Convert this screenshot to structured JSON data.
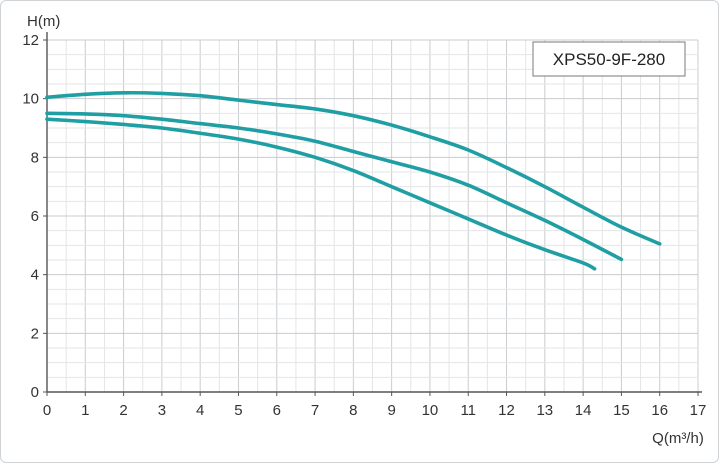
{
  "chart_data": {
    "type": "line",
    "title": "",
    "xlabel": "Q(m³/h)",
    "ylabel": "H(m)",
    "annotation": "XPS50-9F-280",
    "xlim": [
      0,
      17
    ],
    "ylim": [
      0,
      12
    ],
    "x_ticks": [
      "0",
      "1",
      "2",
      "3",
      "4",
      "5",
      "6",
      "7",
      "8",
      "9",
      "10",
      "11",
      "12",
      "13",
      "14",
      "15",
      "16",
      "17"
    ],
    "y_ticks": [
      "0",
      "2",
      "4",
      "6",
      "8",
      "10",
      "12"
    ],
    "grid": true,
    "line_color": "#1f9fa3",
    "series": [
      {
        "x": [
          0,
          1,
          2,
          3,
          4,
          5,
          6,
          7,
          8,
          9,
          10,
          11,
          12,
          13,
          14,
          15,
          16
        ],
        "y": [
          10.05,
          10.15,
          10.2,
          10.18,
          10.1,
          9.95,
          9.8,
          9.65,
          9.42,
          9.1,
          8.7,
          8.25,
          7.65,
          7.0,
          6.3,
          5.62,
          5.05
        ]
      },
      {
        "x": [
          0,
          1,
          2,
          3,
          4,
          5,
          6,
          7,
          8,
          9,
          10,
          11,
          12,
          13,
          14,
          15
        ],
        "y": [
          9.5,
          9.48,
          9.42,
          9.3,
          9.15,
          9.0,
          8.8,
          8.55,
          8.2,
          7.85,
          7.5,
          7.05,
          6.45,
          5.85,
          5.2,
          4.52
        ]
      },
      {
        "x": [
          0,
          1,
          2,
          3,
          4,
          5,
          6,
          7,
          8,
          9,
          10,
          11,
          12,
          13,
          14,
          14.3
        ],
        "y": [
          9.3,
          9.22,
          9.12,
          9.0,
          8.82,
          8.62,
          8.35,
          8.0,
          7.55,
          7.0,
          6.45,
          5.9,
          5.35,
          4.85,
          4.4,
          4.2
        ]
      }
    ]
  }
}
